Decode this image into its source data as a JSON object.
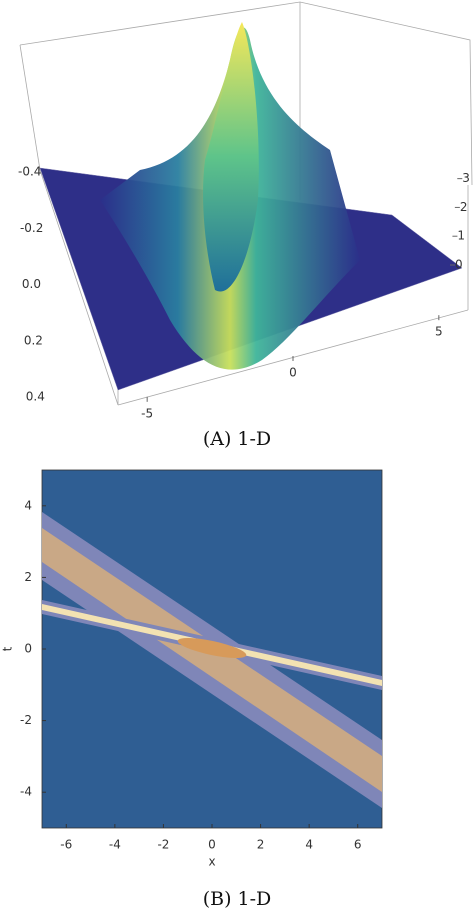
{
  "chart_data": [
    {
      "type": "surface",
      "caption": "(A) 1-D",
      "xlim": [
        -6,
        6
      ],
      "xticks": [
        -5,
        0,
        5
      ],
      "ylim": [
        -0.4,
        0.4
      ],
      "yticks": [
        -0.4,
        -0.2,
        {
          "value": 0,
          "label": "0.0"
        },
        0.2,
        0.4
      ],
      "zlim": [
        0,
        3.3
      ],
      "zticks": [
        0,
        1,
        2,
        3
      ]
    },
    {
      "type": "contour",
      "caption": "(B) 1-D",
      "xlabel": "x",
      "ylabel": "t",
      "xlim": [
        -7,
        7
      ],
      "xticks": [
        -6,
        -4,
        -2,
        0,
        2,
        4,
        6
      ],
      "ylim": [
        -5,
        5
      ],
      "yticks": [
        -4,
        -2,
        0,
        2,
        4
      ]
    }
  ]
}
